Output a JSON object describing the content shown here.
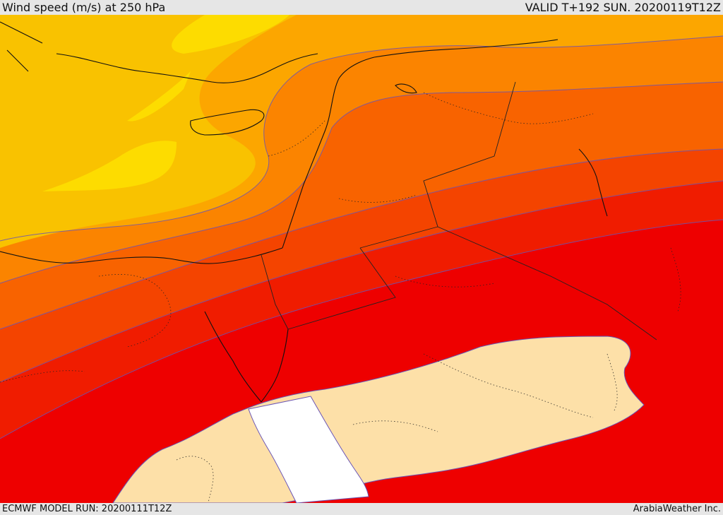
{
  "header": {
    "title": "Wind speed (m/s) at 250 hPa",
    "valid_time": "VALID T+192 SUN. 20200119T12Z"
  },
  "footer": {
    "model_run": "ECMWF MODEL RUN: 20200111T12Z",
    "credit": "ArabiaWeather Inc."
  },
  "map": {
    "variable": "wind speed",
    "level": "250 hPa",
    "colors": {
      "slow_pale_orange": "#f9c200",
      "yellow_core": "#fddc00",
      "orange_1": "#fca600",
      "orange_2": "#fb8400",
      "orange_3": "#f86300",
      "red_orange": "#f44400",
      "red_1": "#f01c00",
      "red_core": "#ee0000",
      "jet_core_fill": "#fde0a8",
      "jet_core_max": "#ffffff",
      "contour": "#6b55b5",
      "coastline": "#111111",
      "border_dotted": "#222222"
    }
  }
}
